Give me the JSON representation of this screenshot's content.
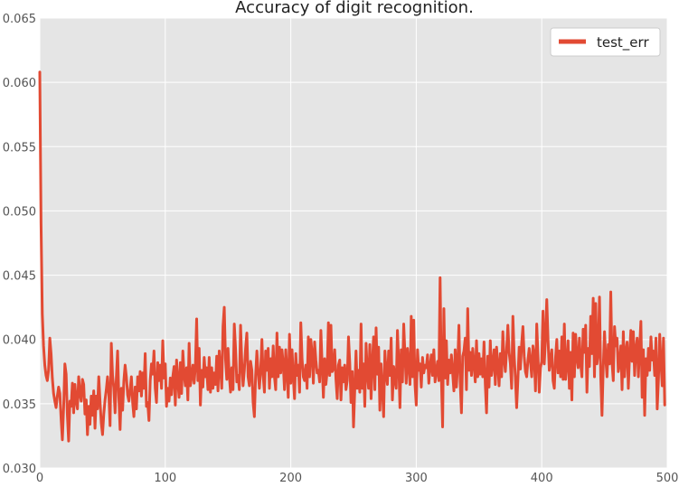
{
  "chart_data": {
    "type": "line",
    "title": "Accuracy of digit recognition.",
    "xlabel": "",
    "ylabel": "",
    "xlim": [
      0,
      500
    ],
    "ylim": [
      0.03,
      0.065
    ],
    "x_ticks": [
      0,
      100,
      200,
      300,
      400,
      500
    ],
    "y_ticks": [
      "0.030",
      "0.035",
      "0.040",
      "0.045",
      "0.050",
      "0.055",
      "0.060",
      "0.065"
    ],
    "grid": true,
    "legend_position": "top-right",
    "series": [
      {
        "name": "test_err",
        "color": "#E24A33",
        "x_start": 0,
        "x_step": 1,
        "values": [
          0.0608,
          0.049,
          0.042,
          0.0395,
          0.038,
          0.0372,
          0.0368,
          0.0376,
          0.0401,
          0.0389,
          0.037,
          0.0358,
          0.0352,
          0.0347,
          0.0356,
          0.0363,
          0.0358,
          0.0338,
          0.0322,
          0.0347,
          0.0381,
          0.0373,
          0.0341,
          0.0321,
          0.0352,
          0.0348,
          0.0366,
          0.0343,
          0.0365,
          0.0352,
          0.0346,
          0.0371,
          0.0358,
          0.0352,
          0.0369,
          0.0365,
          0.0342,
          0.0353,
          0.0326,
          0.0348,
          0.0334,
          0.0356,
          0.0341,
          0.036,
          0.0331,
          0.0356,
          0.0346,
          0.0371,
          0.0352,
          0.0335,
          0.0326,
          0.0342,
          0.0353,
          0.0361,
          0.0371,
          0.0358,
          0.0333,
          0.0397,
          0.0372,
          0.0362,
          0.0343,
          0.037,
          0.0391,
          0.0355,
          0.033,
          0.0362,
          0.0345,
          0.0368,
          0.038,
          0.0371,
          0.0357,
          0.0352,
          0.0361,
          0.0371,
          0.0351,
          0.034,
          0.0363,
          0.0346,
          0.0371,
          0.036,
          0.0375,
          0.0356,
          0.0374,
          0.0362,
          0.0389,
          0.0348,
          0.0351,
          0.0337,
          0.0368,
          0.0381,
          0.0373,
          0.0391,
          0.0362,
          0.0351,
          0.0382,
          0.0368,
          0.038,
          0.0362,
          0.0399,
          0.037,
          0.0381,
          0.0348,
          0.0362,
          0.0352,
          0.037,
          0.0357,
          0.0371,
          0.0379,
          0.0349,
          0.0384,
          0.0368,
          0.0355,
          0.0382,
          0.0358,
          0.0391,
          0.0373,
          0.0364,
          0.0378,
          0.0353,
          0.0397,
          0.0364,
          0.0371,
          0.038,
          0.0366,
          0.0379,
          0.0416,
          0.0368,
          0.0393,
          0.0349,
          0.0376,
          0.0363,
          0.0386,
          0.0371,
          0.0378,
          0.0361,
          0.0386,
          0.0359,
          0.0378,
          0.0362,
          0.0374,
          0.0365,
          0.0387,
          0.036,
          0.0391,
          0.0378,
          0.0362,
          0.041,
          0.0425,
          0.0385,
          0.0369,
          0.0393,
          0.0372,
          0.0359,
          0.0378,
          0.0361,
          0.0412,
          0.0393,
          0.0367,
          0.0372,
          0.0361,
          0.0411,
          0.0382,
          0.0364,
          0.0376,
          0.0393,
          0.0405,
          0.0371,
          0.0364,
          0.0383,
          0.0376,
          0.0351,
          0.034,
          0.0372,
          0.0391,
          0.0375,
          0.0362,
          0.0376,
          0.04,
          0.0372,
          0.0359,
          0.0391,
          0.0376,
          0.0393,
          0.0362,
          0.0385,
          0.0371,
          0.0395,
          0.0371,
          0.0361,
          0.0405,
          0.0371,
          0.0394,
          0.0374,
          0.0392,
          0.0381,
          0.0361,
          0.0392,
          0.0375,
          0.0355,
          0.0404,
          0.0366,
          0.0392,
          0.0371,
          0.0354,
          0.0389,
          0.0372,
          0.038,
          0.0359,
          0.0413,
          0.0385,
          0.0371,
          0.0368,
          0.038,
          0.0362,
          0.0402,
          0.0371,
          0.04,
          0.0389,
          0.0366,
          0.0398,
          0.0384,
          0.0374,
          0.0376,
          0.0367,
          0.0407,
          0.038,
          0.0355,
          0.0385,
          0.0365,
          0.0375,
          0.0413,
          0.0372,
          0.0411,
          0.0375,
          0.0377,
          0.0392,
          0.0369,
          0.0354,
          0.038,
          0.0384,
          0.0353,
          0.0378,
          0.0367,
          0.038,
          0.0361,
          0.0368,
          0.0402,
          0.0382,
          0.0351,
          0.0375,
          0.0332,
          0.0361,
          0.0391,
          0.0362,
          0.0376,
          0.0359,
          0.0412,
          0.0362,
          0.0381,
          0.0348,
          0.0397,
          0.0374,
          0.0362,
          0.0396,
          0.0354,
          0.0381,
          0.0402,
          0.0361,
          0.0409,
          0.0373,
          0.0394,
          0.0345,
          0.0381,
          0.0362,
          0.034,
          0.0391,
          0.0374,
          0.0365,
          0.0391,
          0.0372,
          0.0401,
          0.0353,
          0.0379,
          0.0369,
          0.0362,
          0.0407,
          0.0382,
          0.0347,
          0.0392,
          0.0367,
          0.0412,
          0.0388,
          0.0366,
          0.0393,
          0.038,
          0.0365,
          0.0418,
          0.0371,
          0.0415,
          0.0365,
          0.0349,
          0.0392,
          0.0376,
          0.0381,
          0.0363,
          0.0386,
          0.0374,
          0.038,
          0.0378,
          0.0388,
          0.0366,
          0.0379,
          0.0388,
          0.0372,
          0.0392,
          0.0367,
          0.0375,
          0.0383,
          0.0368,
          0.0448,
          0.0371,
          0.0332,
          0.0424,
          0.037,
          0.0399,
          0.0365,
          0.0384,
          0.0374,
          0.0388,
          0.0374,
          0.036,
          0.0392,
          0.0363,
          0.038,
          0.0411,
          0.0367,
          0.0343,
          0.0387,
          0.0391,
          0.0401,
          0.0361,
          0.0424,
          0.0376,
          0.039,
          0.0372,
          0.0393,
          0.0381,
          0.0367,
          0.0399,
          0.0371,
          0.0389,
          0.0373,
          0.0385,
          0.0371,
          0.0398,
          0.0365,
          0.0343,
          0.0387,
          0.0363,
          0.0399,
          0.0372,
          0.0381,
          0.0392,
          0.0365,
          0.0394,
          0.038,
          0.0364,
          0.0389,
          0.0371,
          0.0406,
          0.0385,
          0.0375,
          0.0392,
          0.0411,
          0.039,
          0.0381,
          0.0362,
          0.0418,
          0.0388,
          0.037,
          0.0347,
          0.0369,
          0.0394,
          0.0377,
          0.0397,
          0.041,
          0.0387,
          0.0375,
          0.0371,
          0.0384,
          0.0393,
          0.0383,
          0.0371,
          0.0395,
          0.0388,
          0.036,
          0.0412,
          0.0387,
          0.0359,
          0.0378,
          0.0383,
          0.0422,
          0.0381,
          0.0401,
          0.0431,
          0.04,
          0.0376,
          0.0384,
          0.0392,
          0.0368,
          0.0362,
          0.0386,
          0.04,
          0.0374,
          0.0391,
          0.0371,
          0.0402,
          0.0369,
          0.0412,
          0.0369,
          0.0381,
          0.0399,
          0.0362,
          0.039,
          0.0353,
          0.0405,
          0.0371,
          0.0404,
          0.0386,
          0.0378,
          0.0401,
          0.0381,
          0.0371,
          0.0408,
          0.039,
          0.0411,
          0.0359,
          0.0393,
          0.0379,
          0.0418,
          0.0389,
          0.0432,
          0.0371,
          0.0428,
          0.0381,
          0.0389,
          0.0433,
          0.0371,
          0.0341,
          0.0378,
          0.0406,
          0.0385,
          0.0371,
          0.0396,
          0.0381,
          0.0437,
          0.0382,
          0.0368,
          0.041,
          0.0395,
          0.0401,
          0.0375,
          0.0382,
          0.0395,
          0.0361,
          0.0406,
          0.0371,
          0.0391,
          0.0398,
          0.0362,
          0.0388,
          0.0407,
          0.0383,
          0.0406,
          0.0372,
          0.0392,
          0.0401,
          0.0371,
          0.0394,
          0.0414,
          0.0355,
          0.0392,
          0.0341,
          0.0385,
          0.0372,
          0.0393,
          0.0376,
          0.0402,
          0.0384,
          0.0391,
          0.0372,
          0.0401,
          0.0346,
          0.0369,
          0.0404,
          0.0382,
          0.0364,
          0.0401,
          0.0349
        ]
      }
    ]
  }
}
